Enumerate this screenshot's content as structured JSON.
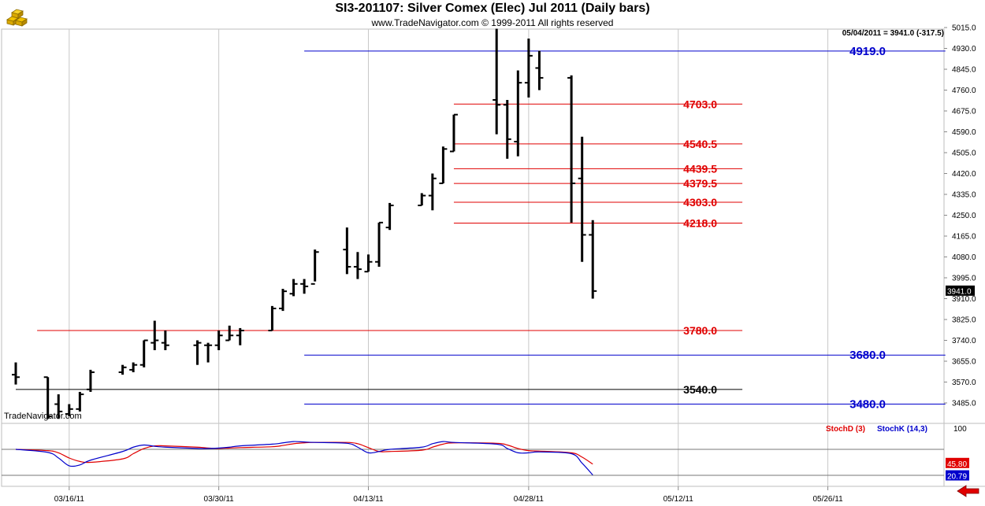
{
  "header": {
    "title": "SI3-201107:  Silver Comex (Elec) Jul 2011  (Daily bars)",
    "copyright": "www.TradeNavigator.com © 1999-2011 All rights reserved",
    "info": "05/04/2011 = 3941.0 (-317.5)",
    "watermark": "TradeNavigator.com"
  },
  "colors": {
    "bar": "#000000",
    "red_level": "#e00000",
    "blue_level": "#0000cc",
    "black_level": "#000000",
    "stoch_d": "#e00000",
    "stoch_k": "#0000cc",
    "grid": "#c8c8c8",
    "last_price_box": "#000000",
    "stoch_d_box": "#e00000",
    "stoch_k_box": "#0000cc",
    "nav_arrow": "#e00000"
  },
  "icons": {
    "logo": "gold-bars-logo-icon",
    "nav": "red-left-arrow-icon"
  },
  "chart_data": [
    {
      "type": "bar",
      "subtype": "ohlc",
      "title": "SI3-201107:  Silver Comex (Elec) Jul 2011  (Daily bars)",
      "x_start_date": "2011-03-11",
      "ylim": [
        3420,
        5040
      ],
      "y_ticks": [
        "5015.0",
        "4930.0",
        "4845.0",
        "4760.0",
        "4675.0",
        "4590.0",
        "4505.0",
        "4420.0",
        "4335.0",
        "4250.0",
        "4165.0",
        "4080.0",
        "3995.0",
        "3910.0",
        "3825.0",
        "3740.0",
        "3655.0",
        "3570.0",
        "3485.0"
      ],
      "x_tick_labels": [
        "03/16/11",
        "03/30/11",
        "04/13/11",
        "04/28/11",
        "05/12/11",
        "05/26/11"
      ],
      "x_tick_dates": [
        "2011-03-16",
        "2011-03-30",
        "2011-04-13",
        "2011-04-28",
        "2011-05-12",
        "2011-05-26"
      ],
      "grid": true,
      "last_price": "3941.0",
      "bars": [
        {
          "date": "2011-03-11",
          "open": 3600,
          "high": 3650,
          "low": 3560,
          "close": 3590
        },
        {
          "date": "2011-03-14",
          "open": 3590,
          "high": 3590,
          "low": 3420,
          "close": 3430
        },
        {
          "date": "2011-03-15",
          "open": 3480,
          "high": 3520,
          "low": 3420,
          "close": 3450
        },
        {
          "date": "2011-03-16",
          "open": 3440,
          "high": 3480,
          "low": 3430,
          "close": 3460
        },
        {
          "date": "2011-03-17",
          "open": 3460,
          "high": 3530,
          "low": 3450,
          "close": 3520
        },
        {
          "date": "2011-03-18",
          "open": 3540,
          "high": 3620,
          "low": 3530,
          "close": 3610
        },
        {
          "date": "2011-03-21",
          "open": 3610,
          "high": 3640,
          "low": 3600,
          "close": 3630
        },
        {
          "date": "2011-03-22",
          "open": 3620,
          "high": 3650,
          "low": 3610,
          "close": 3640
        },
        {
          "date": "2011-03-23",
          "open": 3640,
          "high": 3740,
          "low": 3630,
          "close": 3740
        },
        {
          "date": "2011-03-24",
          "open": 3730,
          "high": 3820,
          "low": 3700,
          "close": 3740
        },
        {
          "date": "2011-03-25",
          "open": 3730,
          "high": 3780,
          "low": 3700,
          "close": 3720
        },
        {
          "date": "2011-03-28",
          "open": 3720,
          "high": 3740,
          "low": 3640,
          "close": 3730
        },
        {
          "date": "2011-03-29",
          "open": 3720,
          "high": 3730,
          "low": 3650,
          "close": 3720
        },
        {
          "date": "2011-03-30",
          "open": 3720,
          "high": 3780,
          "low": 3700,
          "close": 3760
        },
        {
          "date": "2011-03-31",
          "open": 3740,
          "high": 3800,
          "low": 3740,
          "close": 3760
        },
        {
          "date": "2011-04-01",
          "open": 3760,
          "high": 3790,
          "low": 3720,
          "close": 3780
        },
        {
          "date": "2011-04-04",
          "open": 3780,
          "high": 3880,
          "low": 3780,
          "close": 3870
        },
        {
          "date": "2011-04-05",
          "open": 3870,
          "high": 3950,
          "low": 3860,
          "close": 3940
        },
        {
          "date": "2011-04-06",
          "open": 3930,
          "high": 3990,
          "low": 3920,
          "close": 3970
        },
        {
          "date": "2011-04-07",
          "open": 3970,
          "high": 3990,
          "low": 3930,
          "close": 3960
        },
        {
          "date": "2011-04-08",
          "open": 3970,
          "high": 4110,
          "low": 3980,
          "close": 4100
        },
        {
          "date": "2011-04-11",
          "open": 4110,
          "high": 4200,
          "low": 4010,
          "close": 4040
        },
        {
          "date": "2011-04-12",
          "open": 4040,
          "high": 4100,
          "low": 3990,
          "close": 4030
        },
        {
          "date": "2011-04-13",
          "open": 4020,
          "high": 4090,
          "low": 4020,
          "close": 4060
        },
        {
          "date": "2011-04-14",
          "open": 4060,
          "high": 4220,
          "low": 4040,
          "close": 4220
        },
        {
          "date": "2011-04-15",
          "open": 4200,
          "high": 4300,
          "low": 4190,
          "close": 4290
        },
        {
          "date": "2011-04-18",
          "open": 4290,
          "high": 4340,
          "low": 4290,
          "close": 4330
        },
        {
          "date": "2011-04-19",
          "open": 4330,
          "high": 4420,
          "low": 4270,
          "close": 4400
        },
        {
          "date": "2011-04-20",
          "open": 4380,
          "high": 4530,
          "low": 4380,
          "close": 4520
        },
        {
          "date": "2011-04-21",
          "open": 4510,
          "high": 4660,
          "low": 4510,
          "close": 4660
        },
        {
          "date": "2011-04-25",
          "open": 4720,
          "high": 5010,
          "low": 4580,
          "close": 4700
        },
        {
          "date": "2011-04-26",
          "open": 4700,
          "high": 4720,
          "low": 4480,
          "close": 4560
        },
        {
          "date": "2011-04-27",
          "open": 4550,
          "high": 4840,
          "low": 4490,
          "close": 4790
        },
        {
          "date": "2011-04-28",
          "open": 4790,
          "high": 4970,
          "low": 4730,
          "close": 4900
        },
        {
          "date": "2011-04-29",
          "open": 4850,
          "high": 4920,
          "low": 4760,
          "close": 4810
        },
        {
          "date": "2011-05-02",
          "open": 4810,
          "high": 4820,
          "low": 4220,
          "close": 4380
        },
        {
          "date": "2011-05-03",
          "open": 4400,
          "high": 4570,
          "low": 4060,
          "close": 4170
        },
        {
          "date": "2011-05-04",
          "open": 4170,
          "high": 4230,
          "low": 3910,
          "close": 3941
        }
      ],
      "levels": [
        {
          "value": 4919.0,
          "label": "4919.0",
          "color": "blue",
          "from": "2011-04-07",
          "to": "2011-06-06"
        },
        {
          "value": 4703.0,
          "label": "4703.0",
          "color": "red",
          "from": "2011-04-21",
          "to": "2011-05-18"
        },
        {
          "value": 4540.5,
          "label": "4540.5",
          "color": "red",
          "from": "2011-04-21",
          "to": "2011-05-18"
        },
        {
          "value": 4439.5,
          "label": "4439.5",
          "color": "red",
          "from": "2011-04-21",
          "to": "2011-05-18"
        },
        {
          "value": 4379.5,
          "label": "4379.5",
          "color": "red",
          "from": "2011-04-21",
          "to": "2011-05-18"
        },
        {
          "value": 4303.0,
          "label": "4303.0",
          "color": "red",
          "from": "2011-04-21",
          "to": "2011-05-18"
        },
        {
          "value": 4218.0,
          "label": "4218.0",
          "color": "red",
          "from": "2011-04-21",
          "to": "2011-05-18"
        },
        {
          "value": 3780.0,
          "label": "3780.0",
          "color": "red",
          "from": "2011-03-13",
          "to": "2011-05-18"
        },
        {
          "value": 3680.0,
          "label": "3680.0",
          "color": "blue",
          "from": "2011-04-07",
          "to": "2011-06-06"
        },
        {
          "value": 3540.0,
          "label": "3540.0",
          "color": "black",
          "from": "2011-03-11",
          "to": "2011-05-18"
        },
        {
          "value": 3480.0,
          "label": "3480.0",
          "color": "blue",
          "from": "2011-04-07",
          "to": "2011-06-06"
        }
      ]
    },
    {
      "type": "line",
      "ylim": [
        0,
        100
      ],
      "y_tick_labels": [
        "100"
      ],
      "hlines": [
        80,
        20
      ],
      "legend": [
        "StochD (3)",
        "StochK (14,3)"
      ],
      "last_values": {
        "d": "45.80",
        "k": "20.79"
      },
      "x": [
        "2011-03-11",
        "2011-03-14",
        "2011-03-15",
        "2011-03-16",
        "2011-03-17",
        "2011-03-18",
        "2011-03-21",
        "2011-03-22",
        "2011-03-23",
        "2011-03-24",
        "2011-03-25",
        "2011-03-28",
        "2011-03-29",
        "2011-03-30",
        "2011-03-31",
        "2011-04-01",
        "2011-04-04",
        "2011-04-05",
        "2011-04-06",
        "2011-04-07",
        "2011-04-08",
        "2011-04-11",
        "2011-04-12",
        "2011-04-13",
        "2011-04-14",
        "2011-04-15",
        "2011-04-18",
        "2011-04-19",
        "2011-04-20",
        "2011-04-21",
        "2011-04-25",
        "2011-04-26",
        "2011-04-27",
        "2011-04-28",
        "2011-04-29",
        "2011-05-02",
        "2011-05-03",
        "2011-05-04"
      ],
      "series": [
        {
          "name": "StochD (3)",
          "values": [
            80,
            77,
            72,
            60,
            52,
            50,
            58,
            70,
            82,
            88,
            88,
            85,
            83,
            82,
            83,
            84,
            86,
            89,
            93,
            95,
            96,
            96,
            93,
            84,
            75,
            75,
            78,
            85,
            92,
            95,
            94,
            90,
            82,
            77,
            76,
            72,
            62,
            45.8
          ]
        },
        {
          "name": "StochK (14,3)",
          "values": [
            80,
            73,
            60,
            42,
            44,
            55,
            75,
            85,
            90,
            87,
            85,
            82,
            82,
            83,
            85,
            88,
            92,
            95,
            98,
            97,
            96,
            94,
            85,
            72,
            75,
            80,
            85,
            93,
            98,
            96,
            92,
            82,
            72,
            72,
            74,
            70,
            48,
            20.79
          ]
        }
      ]
    }
  ]
}
